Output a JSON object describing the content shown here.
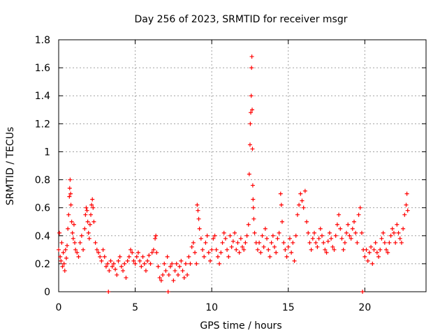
{
  "chart_data": {
    "type": "scatter",
    "title": "Day 256 of 2023, SRMTID for receiver msgr",
    "xlabel": "GPS time / hours",
    "ylabel": "SRMTID / TECUs",
    "xlim": [
      0,
      24
    ],
    "ylim": [
      0,
      1.8
    ],
    "xticks": [
      0,
      5,
      10,
      15,
      20
    ],
    "xtick_labels": [
      "0",
      "5",
      "10",
      "15",
      "20"
    ],
    "yticks": [
      0,
      0.2,
      0.4,
      0.6,
      0.8,
      1,
      1.2,
      1.4,
      1.6,
      1.8
    ],
    "ytick_labels": [
      "0",
      "0.2",
      "0.4",
      "0.6",
      "0.8",
      "1",
      "1.2",
      "1.4",
      "1.6",
      "1.8"
    ],
    "grid": true,
    "marker": "+",
    "color": "#ff0000",
    "series": [
      {
        "name": "SRMTID",
        "points": [
          [
            0.0,
            0.3
          ],
          [
            0.05,
            0.42
          ],
          [
            0.1,
            0.25
          ],
          [
            0.15,
            0.22
          ],
          [
            0.2,
            0.35
          ],
          [
            0.25,
            0.18
          ],
          [
            0.3,
            0.28
          ],
          [
            0.35,
            0.2
          ],
          [
            0.4,
            0.15
          ],
          [
            0.45,
            0.3
          ],
          [
            0.5,
            0.24
          ],
          [
            0.55,
            0.33
          ],
          [
            0.6,
            0.45
          ],
          [
            0.65,
            0.55
          ],
          [
            0.7,
            0.68
          ],
          [
            0.72,
            0.74
          ],
          [
            0.75,
            0.8
          ],
          [
            0.78,
            0.7
          ],
          [
            0.8,
            0.62
          ],
          [
            0.85,
            0.5
          ],
          [
            0.9,
            0.42
          ],
          [
            0.95,
            0.38
          ],
          [
            1.0,
            0.48
          ],
          [
            1.05,
            0.35
          ],
          [
            1.1,
            0.3
          ],
          [
            1.2,
            0.28
          ],
          [
            1.3,
            0.25
          ],
          [
            1.4,
            0.35
          ],
          [
            1.5,
            0.4
          ],
          [
            1.6,
            0.3
          ],
          [
            1.7,
            0.45
          ],
          [
            1.75,
            0.55
          ],
          [
            1.8,
            0.6
          ],
          [
            1.85,
            0.58
          ],
          [
            1.9,
            0.5
          ],
          [
            1.95,
            0.42
          ],
          [
            2.0,
            0.38
          ],
          [
            2.05,
            0.48
          ],
          [
            2.1,
            0.55
          ],
          [
            2.15,
            0.62
          ],
          [
            2.2,
            0.66
          ],
          [
            2.25,
            0.6
          ],
          [
            2.3,
            0.5
          ],
          [
            2.4,
            0.35
          ],
          [
            2.5,
            0.3
          ],
          [
            2.6,
            0.28
          ],
          [
            2.7,
            0.25
          ],
          [
            2.8,
            0.22
          ],
          [
            2.9,
            0.3
          ],
          [
            3.0,
            0.25
          ],
          [
            3.1,
            0.18
          ],
          [
            3.2,
            0.2
          ],
          [
            3.25,
            0.0
          ],
          [
            3.3,
            0.15
          ],
          [
            3.4,
            0.22
          ],
          [
            3.5,
            0.18
          ],
          [
            3.6,
            0.2
          ],
          [
            3.7,
            0.16
          ],
          [
            3.8,
            0.12
          ],
          [
            3.9,
            0.22
          ],
          [
            4.0,
            0.25
          ],
          [
            4.1,
            0.18
          ],
          [
            4.2,
            0.15
          ],
          [
            4.3,
            0.2
          ],
          [
            4.4,
            0.1
          ],
          [
            4.5,
            0.22
          ],
          [
            4.6,
            0.25
          ],
          [
            4.7,
            0.3
          ],
          [
            4.8,
            0.28
          ],
          [
            4.9,
            0.22
          ],
          [
            5.0,
            0.2
          ],
          [
            5.1,
            0.25
          ],
          [
            5.2,
            0.28
          ],
          [
            5.3,
            0.22
          ],
          [
            5.4,
            0.18
          ],
          [
            5.5,
            0.25
          ],
          [
            5.6,
            0.2
          ],
          [
            5.7,
            0.15
          ],
          [
            5.8,
            0.22
          ],
          [
            5.9,
            0.26
          ],
          [
            6.0,
            0.2
          ],
          [
            6.1,
            0.28
          ],
          [
            6.2,
            0.3
          ],
          [
            6.3,
            0.38
          ],
          [
            6.35,
            0.4
          ],
          [
            6.4,
            0.28
          ],
          [
            6.5,
            0.18
          ],
          [
            6.6,
            0.1
          ],
          [
            6.7,
            0.08
          ],
          [
            6.8,
            0.12
          ],
          [
            6.9,
            0.2
          ],
          [
            7.0,
            0.15
          ],
          [
            7.1,
            0.25
          ],
          [
            7.15,
            0.0
          ],
          [
            7.2,
            0.12
          ],
          [
            7.3,
            0.18
          ],
          [
            7.4,
            0.2
          ],
          [
            7.5,
            0.08
          ],
          [
            7.6,
            0.15
          ],
          [
            7.7,
            0.2
          ],
          [
            7.8,
            0.12
          ],
          [
            7.9,
            0.18
          ],
          [
            8.0,
            0.22
          ],
          [
            8.1,
            0.15
          ],
          [
            8.2,
            0.1
          ],
          [
            8.3,
            0.2
          ],
          [
            8.4,
            0.12
          ],
          [
            8.5,
            0.25
          ],
          [
            8.6,
            0.2
          ],
          [
            8.7,
            0.32
          ],
          [
            8.8,
            0.35
          ],
          [
            8.9,
            0.28
          ],
          [
            9.0,
            0.2
          ],
          [
            9.05,
            0.62
          ],
          [
            9.1,
            0.58
          ],
          [
            9.15,
            0.52
          ],
          [
            9.2,
            0.45
          ],
          [
            9.3,
            0.38
          ],
          [
            9.4,
            0.3
          ],
          [
            9.5,
            0.25
          ],
          [
            9.6,
            0.35
          ],
          [
            9.7,
            0.4
          ],
          [
            9.8,
            0.28
          ],
          [
            9.9,
            0.22
          ],
          [
            10.0,
            0.3
          ],
          [
            10.1,
            0.38
          ],
          [
            10.2,
            0.4
          ],
          [
            10.3,
            0.3
          ],
          [
            10.4,
            0.25
          ],
          [
            10.5,
            0.2
          ],
          [
            10.6,
            0.28
          ],
          [
            10.7,
            0.35
          ],
          [
            10.8,
            0.42
          ],
          [
            10.9,
            0.38
          ],
          [
            11.0,
            0.3
          ],
          [
            11.1,
            0.25
          ],
          [
            11.2,
            0.4
          ],
          [
            11.3,
            0.32
          ],
          [
            11.4,
            0.36
          ],
          [
            11.5,
            0.42
          ],
          [
            11.6,
            0.3
          ],
          [
            11.7,
            0.35
          ],
          [
            11.8,
            0.28
          ],
          [
            11.9,
            0.38
          ],
          [
            12.0,
            0.32
          ],
          [
            12.1,
            0.3
          ],
          [
            12.2,
            0.35
          ],
          [
            12.3,
            0.4
          ],
          [
            12.4,
            0.48
          ],
          [
            12.45,
            0.84
          ],
          [
            12.5,
            1.05
          ],
          [
            12.52,
            1.2
          ],
          [
            12.55,
            1.28
          ],
          [
            12.58,
            1.4
          ],
          [
            12.6,
            1.6
          ],
          [
            12.62,
            1.68
          ],
          [
            12.64,
            1.3
          ],
          [
            12.66,
            1.02
          ],
          [
            12.68,
            0.76
          ],
          [
            12.7,
            0.66
          ],
          [
            12.72,
            0.6
          ],
          [
            12.75,
            0.52
          ],
          [
            12.8,
            0.42
          ],
          [
            12.9,
            0.35
          ],
          [
            13.0,
            0.3
          ],
          [
            13.1,
            0.35
          ],
          [
            13.2,
            0.28
          ],
          [
            13.3,
            0.4
          ],
          [
            13.4,
            0.32
          ],
          [
            13.5,
            0.45
          ],
          [
            13.6,
            0.38
          ],
          [
            13.7,
            0.3
          ],
          [
            13.8,
            0.25
          ],
          [
            13.9,
            0.35
          ],
          [
            14.0,
            0.4
          ],
          [
            14.1,
            0.32
          ],
          [
            14.2,
            0.28
          ],
          [
            14.3,
            0.38
          ],
          [
            14.4,
            0.42
          ],
          [
            14.5,
            0.7
          ],
          [
            14.55,
            0.62
          ],
          [
            14.6,
            0.5
          ],
          [
            14.7,
            0.35
          ],
          [
            14.8,
            0.3
          ],
          [
            14.9,
            0.25
          ],
          [
            15.0,
            0.32
          ],
          [
            15.1,
            0.38
          ],
          [
            15.2,
            0.28
          ],
          [
            15.3,
            0.35
          ],
          [
            15.4,
            0.22
          ],
          [
            15.5,
            0.4
          ],
          [
            15.6,
            0.55
          ],
          [
            15.7,
            0.62
          ],
          [
            15.8,
            0.7
          ],
          [
            15.9,
            0.65
          ],
          [
            16.0,
            0.6
          ],
          [
            16.1,
            0.72
          ],
          [
            16.2,
            0.5
          ],
          [
            16.3,
            0.42
          ],
          [
            16.4,
            0.35
          ],
          [
            16.5,
            0.3
          ],
          [
            16.6,
            0.38
          ],
          [
            16.7,
            0.42
          ],
          [
            16.8,
            0.35
          ],
          [
            16.9,
            0.32
          ],
          [
            17.0,
            0.38
          ],
          [
            17.1,
            0.45
          ],
          [
            17.2,
            0.4
          ],
          [
            17.3,
            0.35
          ],
          [
            17.4,
            0.3
          ],
          [
            17.5,
            0.28
          ],
          [
            17.6,
            0.36
          ],
          [
            17.7,
            0.42
          ],
          [
            17.8,
            0.38
          ],
          [
            17.9,
            0.32
          ],
          [
            18.0,
            0.3
          ],
          [
            18.1,
            0.4
          ],
          [
            18.2,
            0.48
          ],
          [
            18.3,
            0.55
          ],
          [
            18.4,
            0.45
          ],
          [
            18.5,
            0.38
          ],
          [
            18.6,
            0.3
          ],
          [
            18.7,
            0.35
          ],
          [
            18.8,
            0.42
          ],
          [
            18.9,
            0.48
          ],
          [
            19.0,
            0.4
          ],
          [
            19.1,
            0.38
          ],
          [
            19.2,
            0.45
          ],
          [
            19.3,
            0.5
          ],
          [
            19.4,
            0.42
          ],
          [
            19.5,
            0.35
          ],
          [
            19.6,
            0.55
          ],
          [
            19.7,
            0.6
          ],
          [
            19.8,
            0.42
          ],
          [
            19.85,
            0.0
          ],
          [
            19.9,
            0.3
          ],
          [
            20.0,
            0.25
          ],
          [
            20.1,
            0.3
          ],
          [
            20.2,
            0.22
          ],
          [
            20.3,
            0.28
          ],
          [
            20.4,
            0.32
          ],
          [
            20.5,
            0.2
          ],
          [
            20.6,
            0.3
          ],
          [
            20.7,
            0.35
          ],
          [
            20.8,
            0.28
          ],
          [
            20.9,
            0.25
          ],
          [
            21.0,
            0.3
          ],
          [
            21.1,
            0.38
          ],
          [
            21.2,
            0.42
          ],
          [
            21.3,
            0.35
          ],
          [
            21.4,
            0.3
          ],
          [
            21.5,
            0.28
          ],
          [
            21.6,
            0.35
          ],
          [
            21.7,
            0.4
          ],
          [
            21.8,
            0.45
          ],
          [
            21.9,
            0.42
          ],
          [
            22.0,
            0.35
          ],
          [
            22.1,
            0.48
          ],
          [
            22.2,
            0.42
          ],
          [
            22.3,
            0.38
          ],
          [
            22.4,
            0.35
          ],
          [
            22.5,
            0.45
          ],
          [
            22.6,
            0.55
          ],
          [
            22.7,
            0.62
          ],
          [
            22.75,
            0.7
          ],
          [
            22.8,
            0.58
          ]
        ]
      }
    ]
  }
}
